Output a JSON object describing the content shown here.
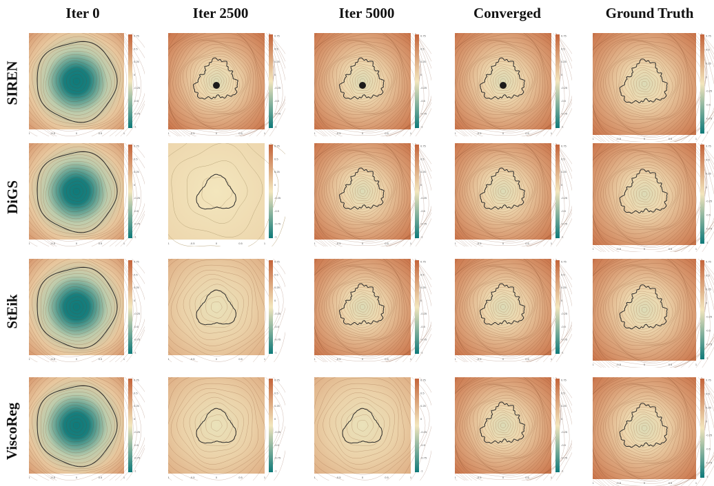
{
  "columns": [
    "Iter 0",
    "Iter 2500",
    "Iter 5000",
    "Converged",
    "Ground Truth"
  ],
  "rows": [
    "SIREN",
    "DiGS",
    "StEik",
    "ViscoReg"
  ],
  "colormap": {
    "low": "#0f7a7a",
    "mid": "#f3e6bd",
    "high": "#c4643a"
  },
  "colorbar_ticks": [
    "0.75",
    "0.5",
    "0.25",
    "0",
    "-0.25",
    "-0.5",
    "-0.75",
    "-1"
  ],
  "axis_ticks": [
    "-1",
    "-0.5",
    "0",
    "0.5",
    "1"
  ]
}
